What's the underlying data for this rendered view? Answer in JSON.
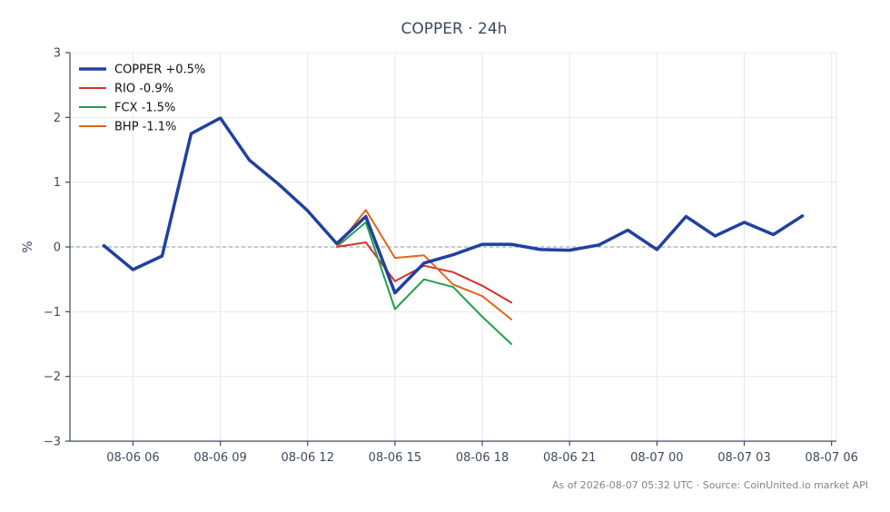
{
  "chart_data": {
    "type": "line",
    "title": "COPPER · 24h",
    "ylabel": "%",
    "xlabel": "",
    "ylim": [
      -3,
      3
    ],
    "xlim": [
      "08-06 03:50",
      "08-07 06:10"
    ],
    "x_tick_labels": [
      "08-06 06",
      "08-06 09",
      "08-06 12",
      "08-06 15",
      "08-06 18",
      "08-06 21",
      "08-07 00",
      "08-07 03",
      "08-07 06"
    ],
    "y_tick_labels": [
      "−3",
      "−2",
      "−1",
      "0",
      "1",
      "2",
      "3"
    ],
    "y_ticks": [
      -3,
      -2,
      -1,
      0,
      1,
      2,
      3
    ],
    "zero_line": true,
    "grid": true,
    "legend_position": "top-left",
    "series": [
      {
        "name": "COPPER +0.5%",
        "color": "#2140a0",
        "width": 3.5,
        "x": [
          "08-06 05:00",
          "08-06 06:00",
          "08-06 07:00",
          "08-06 08:00",
          "08-06 09:00",
          "08-06 10:00",
          "08-06 11:00",
          "08-06 12:00",
          "08-06 13:00",
          "08-06 14:00",
          "08-06 15:00",
          "08-06 16:00",
          "08-06 17:00",
          "08-06 18:00",
          "08-06 19:00",
          "08-06 20:00",
          "08-06 21:00",
          "08-06 22:00",
          "08-06 23:00",
          "08-07 00:00",
          "08-07 01:00",
          "08-07 02:00",
          "08-07 03:00",
          "08-07 04:00",
          "08-07 05:00"
        ],
        "values": [
          0.02,
          -0.35,
          -0.14,
          1.75,
          1.99,
          1.34,
          0.97,
          0.56,
          0.05,
          0.47,
          -0.71,
          -0.25,
          -0.12,
          0.04,
          0.04,
          -0.04,
          -0.05,
          0.03,
          0.26,
          -0.04,
          0.47,
          0.17,
          0.38,
          0.19,
          0.48
        ]
      },
      {
        "name": "RIO -0.9%",
        "color": "#d93030",
        "width": 2,
        "x": [
          "08-06 13:00",
          "08-06 14:00",
          "08-06 15:00",
          "08-06 16:00",
          "08-06 17:00",
          "08-06 18:00",
          "08-06 19:00"
        ],
        "values": [
          0.0,
          0.07,
          -0.53,
          -0.29,
          -0.39,
          -0.6,
          -0.86
        ]
      },
      {
        "name": "FCX -1.5%",
        "color": "#22a04a",
        "width": 2,
        "x": [
          "08-06 13:00",
          "08-06 14:00",
          "08-06 15:00",
          "08-06 16:00",
          "08-06 17:00",
          "08-06 18:00",
          "08-06 19:00"
        ],
        "values": [
          0.0,
          0.38,
          -0.96,
          -0.5,
          -0.62,
          -1.08,
          -1.5
        ]
      },
      {
        "name": "BHP -1.1%",
        "color": "#e0661a",
        "width": 2,
        "x": [
          "08-06 13:00",
          "08-06 14:00",
          "08-06 15:00",
          "08-06 16:00",
          "08-06 17:00",
          "08-06 18:00",
          "08-06 19:00"
        ],
        "values": [
          0.0,
          0.57,
          -0.17,
          -0.13,
          -0.58,
          -0.76,
          -1.12
        ]
      }
    ]
  },
  "footer": "As of 2026-08-07 05:32 UTC · Source: CoinUnited.io market API"
}
